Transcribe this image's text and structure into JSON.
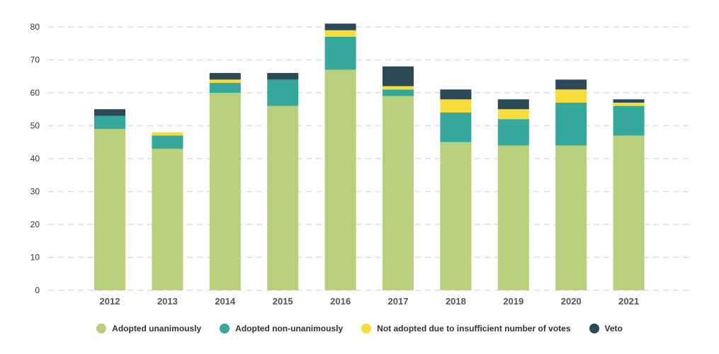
{
  "chart_data": {
    "type": "bar",
    "stacked": true,
    "categories": [
      "2012",
      "2013",
      "2014",
      "2015",
      "2016",
      "2017",
      "2018",
      "2019",
      "2020",
      "2021"
    ],
    "series": [
      {
        "name": "Adopted unanimously",
        "color": "#b8cf7c",
        "values": [
          49,
          43,
          60,
          56,
          67,
          59,
          45,
          44,
          44,
          47
        ]
      },
      {
        "name": "Adopted non-unanimously",
        "color": "#34a89a",
        "values": [
          4,
          4,
          3,
          8,
          10,
          2,
          9,
          8,
          13,
          9
        ]
      },
      {
        "name": "Not adopted due to insufficient number of votes",
        "color": "#f7dc3a",
        "values": [
          0,
          1,
          1,
          0,
          2,
          1,
          4,
          3,
          4,
          1
        ]
      },
      {
        "name": "Veto",
        "color": "#2b4956",
        "values": [
          2,
          0,
          2,
          2,
          2,
          6,
          3,
          3,
          3,
          1
        ]
      }
    ],
    "yticks": [
      0,
      10,
      20,
      30,
      40,
      50,
      60,
      70,
      80
    ],
    "ylim": [
      0,
      80
    ],
    "grid": true,
    "legend": "bottom-center",
    "title": "",
    "xlabel": "",
    "ylabel": ""
  }
}
